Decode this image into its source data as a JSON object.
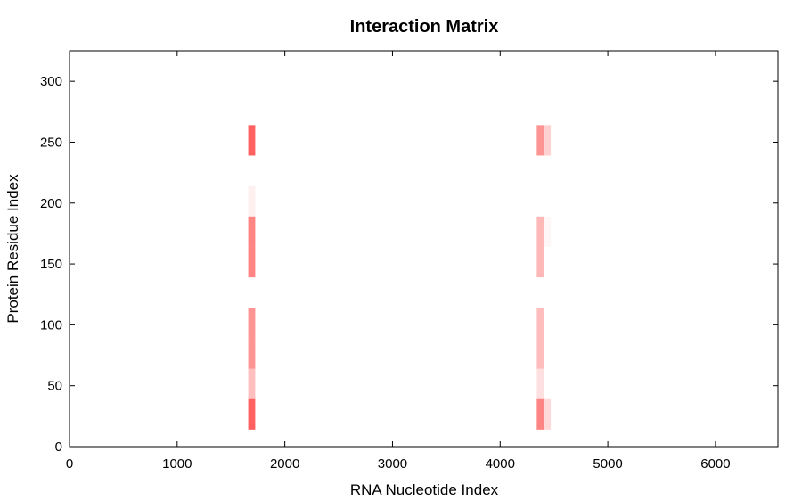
{
  "chart_data": {
    "type": "heatmap",
    "title": "Interaction Matrix",
    "xlabel": "RNA Nucleotide Index",
    "ylabel": "Protein Residue Index",
    "xlim": [
      0,
      6580
    ],
    "ylim": [
      0,
      325
    ],
    "x_ticks": [
      0,
      1000,
      2000,
      3000,
      4000,
      5000,
      6000
    ],
    "y_ticks": [
      0,
      50,
      100,
      150,
      200,
      250,
      300
    ],
    "grid": false,
    "base_color": "#ff0000",
    "cells": [
      {
        "x0": 1660,
        "x1": 1725,
        "y0": 239,
        "y1": 264,
        "intensity": 0.62
      },
      {
        "x0": 1660,
        "x1": 1725,
        "y0": 189,
        "y1": 214,
        "intensity": 0.06
      },
      {
        "x0": 1660,
        "x1": 1725,
        "y0": 164,
        "y1": 189,
        "intensity": 0.48
      },
      {
        "x0": 1660,
        "x1": 1725,
        "y0": 139,
        "y1": 164,
        "intensity": 0.48
      },
      {
        "x0": 1660,
        "x1": 1725,
        "y0": 89,
        "y1": 114,
        "intensity": 0.42
      },
      {
        "x0": 1660,
        "x1": 1725,
        "y0": 64,
        "y1": 89,
        "intensity": 0.42
      },
      {
        "x0": 1660,
        "x1": 1725,
        "y0": 39,
        "y1": 64,
        "intensity": 0.25
      },
      {
        "x0": 1660,
        "x1": 1725,
        "y0": 14,
        "y1": 39,
        "intensity": 0.62
      },
      {
        "x0": 4340,
        "x1": 4405,
        "y0": 239,
        "y1": 264,
        "intensity": 0.42
      },
      {
        "x0": 4405,
        "x1": 4470,
        "y0": 239,
        "y1": 264,
        "intensity": 0.18
      },
      {
        "x0": 4340,
        "x1": 4405,
        "y0": 164,
        "y1": 189,
        "intensity": 0.28
      },
      {
        "x0": 4340,
        "x1": 4405,
        "y0": 139,
        "y1": 164,
        "intensity": 0.28
      },
      {
        "x0": 4405,
        "x1": 4470,
        "y0": 164,
        "y1": 189,
        "intensity": 0.03
      },
      {
        "x0": 4340,
        "x1": 4405,
        "y0": 89,
        "y1": 114,
        "intensity": 0.26
      },
      {
        "x0": 4340,
        "x1": 4405,
        "y0": 64,
        "y1": 89,
        "intensity": 0.26
      },
      {
        "x0": 4340,
        "x1": 4405,
        "y0": 39,
        "y1": 64,
        "intensity": 0.12
      },
      {
        "x0": 4340,
        "x1": 4405,
        "y0": 14,
        "y1": 39,
        "intensity": 0.48
      },
      {
        "x0": 4405,
        "x1": 4470,
        "y0": 14,
        "y1": 39,
        "intensity": 0.15
      }
    ]
  }
}
